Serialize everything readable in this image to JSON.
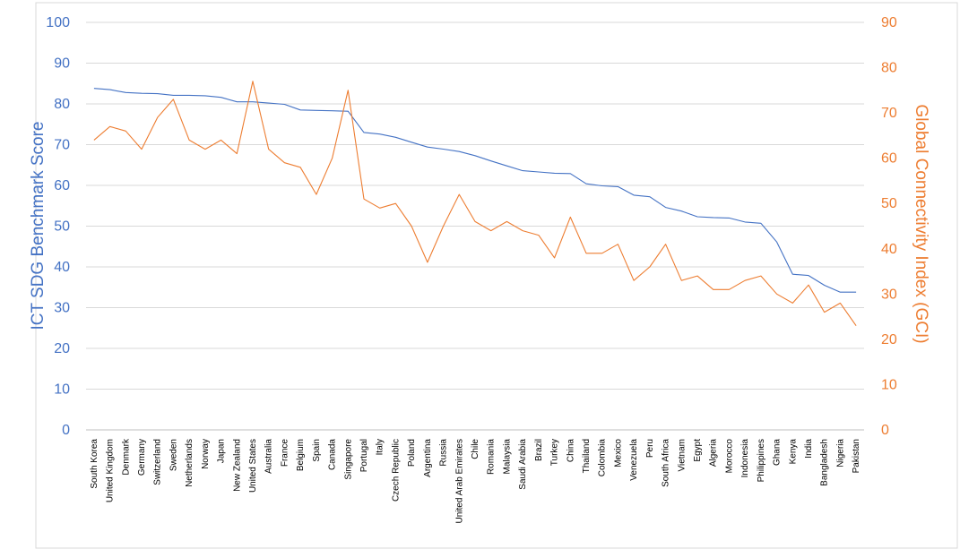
{
  "chart_data": {
    "type": "line",
    "categories": [
      "South Korea",
      "United Kingdom",
      "Denmark",
      "Germany",
      "Switzerland",
      "Sweden",
      "Netherlands",
      "Norway",
      "Japan",
      "New Zealand",
      "United States",
      "Australia",
      "France",
      "Belgium",
      "Spain",
      "Canada",
      "Singapore",
      "Portugal",
      "Italy",
      "Czech Republic",
      "Poland",
      "Argentina",
      "Russia",
      "United Arab Emirates",
      "Chile",
      "Romania",
      "Malaysia",
      "Saudi Arabia",
      "Brazil",
      "Turkey",
      "China",
      "Thailand",
      "Colombia",
      "Mexico",
      "Venezuela",
      "Peru",
      "South Africa",
      "Vietnam",
      "Egypt",
      "Algeria",
      "Morocco",
      "Indonesia",
      "Philippines",
      "Ghana",
      "Kenya",
      "India",
      "Bangladesh",
      "Nigeria",
      "Pakistan"
    ],
    "series": [
      {
        "name": "",
        "axis": "left",
        "color": "#4472C4",
        "values": [
          83.8,
          83.5,
          82.8,
          82.6,
          82.5,
          82.1,
          82.1,
          82.0,
          81.6,
          80.5,
          80.5,
          80.2,
          79.9,
          78.5,
          78.4,
          78.3,
          78.2,
          73.0,
          72.6,
          71.8,
          70.6,
          69.4,
          68.9,
          68.3,
          67.3,
          66.0,
          64.8,
          63.6,
          63.3,
          63.0,
          62.9,
          60.4,
          59.9,
          59.7,
          57.6,
          57.2,
          54.6,
          53.7,
          52.3,
          52.1,
          52.0,
          51.0,
          50.7,
          46.1,
          38.2,
          37.9,
          35.5,
          33.8,
          33.8
        ]
      },
      {
        "name": "",
        "axis": "right",
        "color": "#ED7D31",
        "values": [
          64,
          67,
          66,
          62,
          69,
          73,
          64,
          62,
          64,
          61,
          77,
          62,
          59,
          58,
          52,
          60,
          75,
          51,
          49,
          50,
          45,
          37,
          45,
          52,
          46,
          44,
          46,
          44,
          43,
          38,
          47,
          39,
          39,
          41,
          33,
          36,
          41,
          33,
          34,
          31,
          31,
          33,
          34,
          30,
          28,
          32,
          26,
          28,
          23
        ]
      }
    ],
    "ylabel": "ICT SDG Benchmark Score",
    "y2label": "Global Connectivity Index (GCI)",
    "ylim": [
      0,
      100
    ],
    "y2lim": [
      0,
      90
    ],
    "yticks": [
      "0",
      "10",
      "20",
      "30",
      "40",
      "50",
      "60",
      "70",
      "80",
      "90",
      "100"
    ],
    "y2ticks": [
      "0",
      "10",
      "20",
      "30",
      "40",
      "50",
      "60",
      "70",
      "80",
      "90"
    ],
    "grid": true,
    "legend": "none"
  }
}
